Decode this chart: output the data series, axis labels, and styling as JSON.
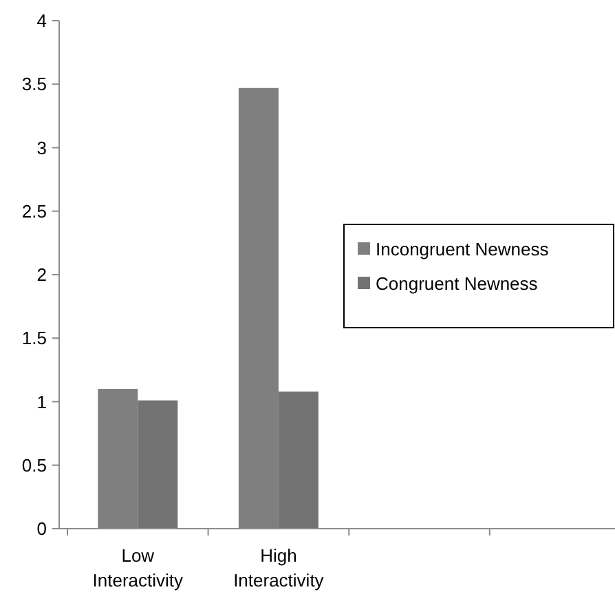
{
  "chart_data": {
    "type": "bar",
    "categories": [
      "Low Interactivity",
      "High Interactivity",
      null,
      null
    ],
    "series": [
      {
        "name": "Incongruent Newness",
        "color": "#7f7f7f",
        "values": [
          1.1,
          3.47,
          null,
          null
        ]
      },
      {
        "name": "Congruent Newness",
        "color": "#737373",
        "values": [
          1.01,
          1.08,
          null,
          null
        ]
      }
    ],
    "ylim": [
      0,
      4
    ],
    "yticks": [
      0,
      {
        "value": 0.5,
        "label": "0.5"
      },
      1,
      {
        "value": 1.5,
        "label": "1.5"
      },
      2,
      {
        "value": 2.5,
        "label": "2.5"
      },
      3,
      {
        "value": 3.5,
        "label": "3.5"
      },
      4
    ],
    "grid": false,
    "legend": "right"
  }
}
